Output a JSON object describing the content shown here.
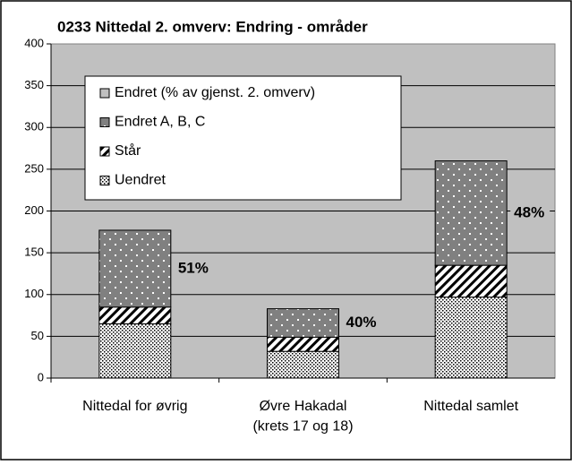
{
  "chart_data": {
    "type": "stacked_bar",
    "title": "0233 Nittedal 2. omverv: Endring - områder",
    "categories": [
      "Nittedal for øvrig",
      "Øvre Hakadal\n(krets 17 og 18)",
      "Nittedal samlet"
    ],
    "series": [
      {
        "name": "Uendret",
        "color": "#ffffff",
        "values": [
          65,
          32,
          97
        ]
      },
      {
        "name": "Står",
        "color": "#ffffff",
        "values": [
          20,
          17,
          38
        ]
      },
      {
        "name": "Endret A, B, C",
        "color": "#808080",
        "values": [
          92,
          34,
          125
        ]
      },
      {
        "name": "Endret (% av gjenst. 2. omverv)",
        "color": "#c0c0c0",
        "values": [
          51,
          40,
          48
        ],
        "value_labels": [
          "51%",
          "40%",
          "48%"
        ]
      }
    ],
    "ylim": [
      0,
      400
    ],
    "yticks": [
      0,
      50,
      100,
      150,
      200,
      250,
      300,
      350,
      400
    ],
    "grid": true,
    "legend": "upper left"
  }
}
